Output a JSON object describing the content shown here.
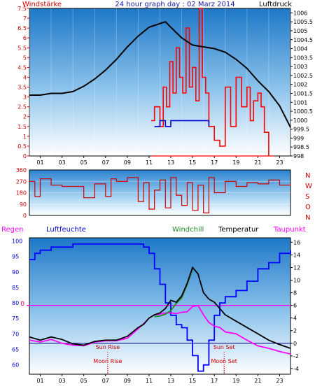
{
  "chart_data": [
    {
      "type": "line",
      "title": "24 hour graph day : 02 Marz 2014",
      "left_axis_label": "Windstärke",
      "right_axis_label": "Luftdruck",
      "x_ticks": [
        "01",
        "03",
        "05",
        "07",
        "09",
        "11",
        "13",
        "15",
        "17",
        "19",
        "21",
        "23"
      ],
      "left_ticks": [
        "0",
        "0.5",
        "1",
        "1.5",
        "2",
        "2.5",
        "3",
        "3.5",
        "4",
        "4.5",
        "5",
        "5.5",
        "6",
        "6.5",
        "7",
        "7.5"
      ],
      "right_ticks": [
        "998",
        "998.5",
        "999",
        "999.5",
        "1000",
        "1000.5",
        "1001",
        "1001.5",
        "1002",
        "1002.5",
        "1003",
        "1003.5",
        "1004",
        "1004.5",
        "1005",
        "1005.5",
        "1006"
      ],
      "left_ylim": [
        0,
        7.5
      ],
      "right_ylim": [
        998,
        1006.25
      ],
      "series": [
        {
          "name": "Luftdruck",
          "color": "#000000",
          "axis": "right",
          "x": [
            0,
            1,
            2,
            3,
            4,
            5,
            6,
            7,
            8,
            9,
            10,
            11,
            12,
            12.5,
            13,
            14,
            15,
            16,
            17,
            18,
            19,
            20,
            21,
            22,
            23,
            24
          ],
          "values": [
            1001.4,
            1001.4,
            1001.5,
            1001.5,
            1001.6,
            1001.9,
            1002.3,
            1002.8,
            1003.4,
            1004.1,
            1004.7,
            1005.2,
            1005.4,
            1005.5,
            1005.2,
            1004.6,
            1004.2,
            1004.1,
            1004.0,
            1003.8,
            1003.4,
            1002.9,
            1002.2,
            1001.6,
            1000.8,
            999.6
          ]
        },
        {
          "name": "Windböen",
          "color": "#ff0000",
          "axis": "left",
          "x": [
            11.2,
            11.5,
            12,
            12.3,
            12.6,
            12.9,
            13.2,
            13.5,
            13.8,
            14.1,
            14.4,
            14.7,
            15,
            15.3,
            15.6,
            15.9,
            16.2,
            16.5,
            17,
            17.5,
            18,
            18.5,
            19,
            19.5,
            20,
            20.3,
            20.6,
            21,
            21.3,
            21.6,
            22
          ],
          "values": [
            1.8,
            2.5,
            1.5,
            3.5,
            2.5,
            4.8,
            3.2,
            5.5,
            4,
            3.2,
            6.5,
            3.5,
            4.5,
            2.8,
            7.5,
            4,
            3.2,
            1.5,
            0.8,
            0.5,
            3.5,
            1.5,
            4,
            2.5,
            3.5,
            1.8,
            2.8,
            3.2,
            2.5,
            1.2,
            0
          ]
        },
        {
          "name": "Windmittel",
          "color": "#0000cc",
          "axis": "left",
          "x": [
            11.5,
            12,
            12.5,
            13,
            13.5,
            14,
            14.5,
            15,
            15.5,
            16,
            16.5
          ],
          "values": [
            1.5,
            1.8,
            1.5,
            1.8,
            1.8,
            1.8,
            1.8,
            1.8,
            1.8,
            1.8,
            1.5
          ]
        }
      ]
    },
    {
      "type": "line",
      "left_ticks": [
        "0",
        "90",
        "180",
        "270",
        "360"
      ],
      "right_labels": [
        "N",
        "W",
        "S",
        "O",
        "N"
      ],
      "ylim": [
        0,
        360
      ],
      "series": [
        {
          "name": "Windrichtung",
          "color": "#cc0000",
          "x": [
            0,
            0.5,
            1,
            2,
            3,
            4,
            5,
            6,
            7,
            7.5,
            8,
            9,
            10,
            10.5,
            11,
            11.5,
            12,
            12.5,
            13,
            13.5,
            14,
            14.5,
            15,
            15.5,
            16,
            16.5,
            17,
            18,
            19,
            20,
            21,
            22,
            23,
            24
          ],
          "values": [
            270,
            150,
            290,
            240,
            230,
            230,
            140,
            250,
            150,
            290,
            270,
            300,
            110,
            260,
            50,
            200,
            280,
            60,
            300,
            160,
            80,
            260,
            40,
            240,
            20,
            300,
            180,
            270,
            230,
            260,
            250,
            280,
            240,
            250
          ]
        }
      ]
    },
    {
      "type": "line",
      "left_axis_label": "Regen",
      "legend": [
        "Luftfeuchte",
        "Windchill",
        "Temperatur",
        "Taupunkt"
      ],
      "left_ticks": [
        "60",
        "65",
        "70",
        "75",
        "80",
        "85",
        "90",
        "95",
        "100"
      ],
      "right_ticks": [
        "-4",
        "-2",
        "0",
        "2",
        "4",
        "6",
        "8",
        "10",
        "12",
        "14",
        "16"
      ],
      "left_ylim": [
        57,
        101
      ],
      "right_ylim": [
        -4.9,
        16.7
      ],
      "zero_label": "0",
      "annotations": [
        {
          "text": "Sun Rise",
          "hour": 7.2
        },
        {
          "text": "Moon Rise",
          "hour": 7.2
        },
        {
          "text": "Sun Set",
          "hour": 17.9
        },
        {
          "text": "Moon Set",
          "hour": 17.9
        }
      ],
      "series": [
        {
          "name": "Luftfeuchte",
          "color": "#0000ff",
          "axis": "left",
          "x": [
            0,
            0.5,
            1,
            2,
            3,
            4,
            5,
            6,
            7,
            8,
            9,
            10,
            10.5,
            11,
            11.5,
            12,
            12.5,
            13,
            13.5,
            14,
            14.5,
            15,
            15.5,
            16,
            16.5,
            17,
            17.5,
            18,
            19,
            20,
            21,
            22,
            23,
            24
          ],
          "values": [
            94,
            96,
            97,
            98,
            98,
            99,
            99,
            99,
            99,
            99,
            99,
            99,
            98,
            96,
            91,
            86,
            80,
            76,
            73,
            72,
            68,
            63,
            58,
            60,
            68,
            76,
            80,
            82,
            84,
            87,
            91,
            93,
            96,
            97
          ]
        },
        {
          "name": "Temperatur",
          "color": "#000000",
          "axis": "right",
          "x": [
            0,
            1,
            2,
            3,
            4,
            5,
            6,
            7,
            8,
            9,
            10,
            10.5,
            11,
            11.5,
            12,
            12.5,
            13,
            13.5,
            14,
            14.5,
            15,
            15.5,
            16,
            16.5,
            17,
            17.5,
            18,
            19,
            20,
            21,
            22,
            23,
            24
          ],
          "values": [
            1,
            0.5,
            1,
            0.6,
            -0.1,
            -0.3,
            0.3,
            0.5,
            0.5,
            1.1,
            2.5,
            3,
            4,
            4.5,
            4.8,
            5.5,
            6.8,
            6.5,
            7.5,
            9.5,
            12,
            11,
            8,
            7,
            6.5,
            5.5,
            4.5,
            3.5,
            2.5,
            1.5,
            0.5,
            -0.2,
            -0.8
          ]
        },
        {
          "name": "Windchill",
          "color": "#228b22",
          "axis": "right",
          "x": [
            11.5,
            12,
            12.5,
            13,
            13.5,
            14,
            14.5,
            15
          ],
          "values": [
            4.2,
            4.3,
            4.6,
            5.2,
            6.3,
            7.2,
            9.3,
            11.8
          ]
        },
        {
          "name": "Taupunkt",
          "color": "#ff00ff",
          "axis": "right",
          "x": [
            0,
            1,
            2,
            3,
            4,
            5,
            6,
            7,
            8,
            9,
            10,
            10.5,
            11,
            11.5,
            12,
            12.5,
            13,
            13.5,
            14,
            14.5,
            15,
            15.5,
            16,
            16.5,
            17,
            17.5,
            18,
            19,
            20,
            21,
            22,
            23,
            24
          ],
          "values": [
            0.5,
            0.2,
            0.6,
            0,
            -0.3,
            -0.4,
            0.2,
            0.4,
            0.4,
            0.8,
            2.3,
            3.1,
            4,
            4.5,
            4.6,
            4.8,
            4.8,
            4.7,
            4.9,
            5,
            5.8,
            6,
            4.5,
            3.3,
            2.7,
            2.5,
            1.8,
            1.5,
            0.5,
            -0.4,
            -0.8,
            -1.3,
            -1.7
          ]
        }
      ]
    }
  ]
}
